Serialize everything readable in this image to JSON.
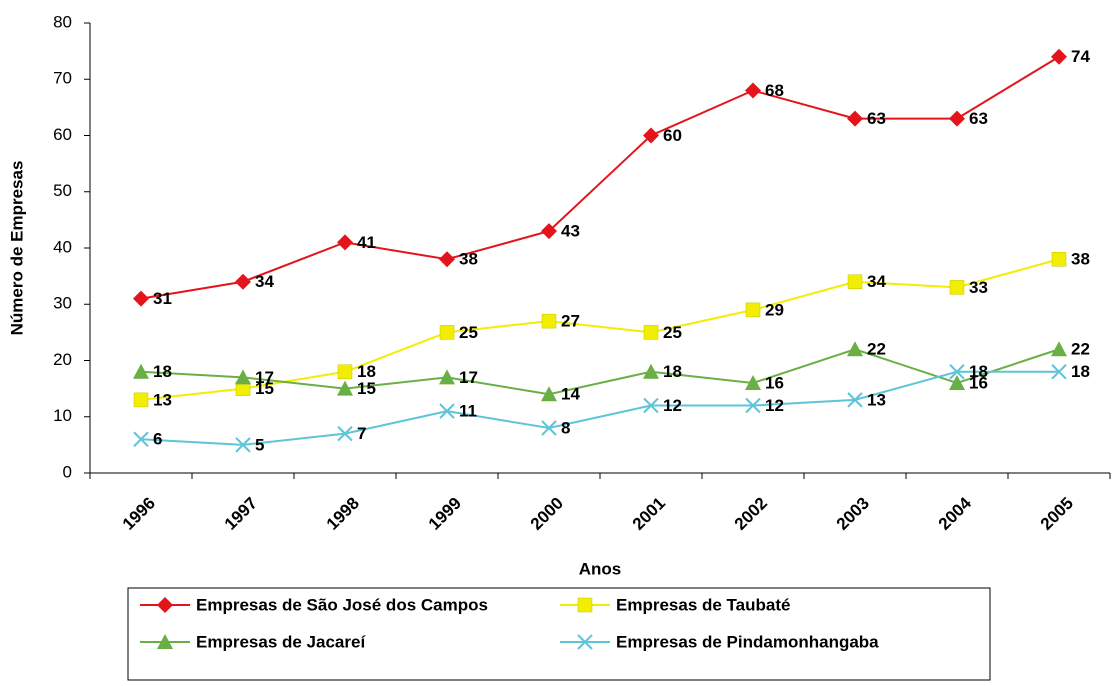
{
  "chart_data": {
    "type": "line",
    "x_label": "Anos",
    "y_label": "Número de Empresas",
    "categories": [
      "1996",
      "1997",
      "1998",
      "1999",
      "2000",
      "2001",
      "2002",
      "2003",
      "2004",
      "2005"
    ],
    "ylim": [
      0,
      80
    ],
    "yticks": [
      0,
      10,
      20,
      30,
      40,
      50,
      60,
      70,
      80
    ],
    "legend": "bottom",
    "series": [
      {
        "name": "Empresas de São José dos Campos",
        "color": "#e3141b",
        "marker": "diamond",
        "values": [
          31,
          34,
          41,
          38,
          43,
          60,
          68,
          63,
          63,
          74
        ]
      },
      {
        "name": "Empresas de Taubaté",
        "color": "#f2ee00",
        "marker": "square",
        "values": [
          13,
          15,
          18,
          25,
          27,
          25,
          29,
          34,
          33,
          38
        ]
      },
      {
        "name": "Empresas de Jacareí",
        "color": "#6aaf45",
        "marker": "triangle",
        "values": [
          18,
          17,
          15,
          17,
          14,
          18,
          16,
          22,
          16,
          22
        ]
      },
      {
        "name": "Empresas de Pindamonhangaba",
        "color": "#5ec4d8",
        "marker": "x",
        "values": [
          6,
          5,
          7,
          11,
          8,
          12,
          12,
          13,
          18,
          18
        ]
      }
    ]
  }
}
